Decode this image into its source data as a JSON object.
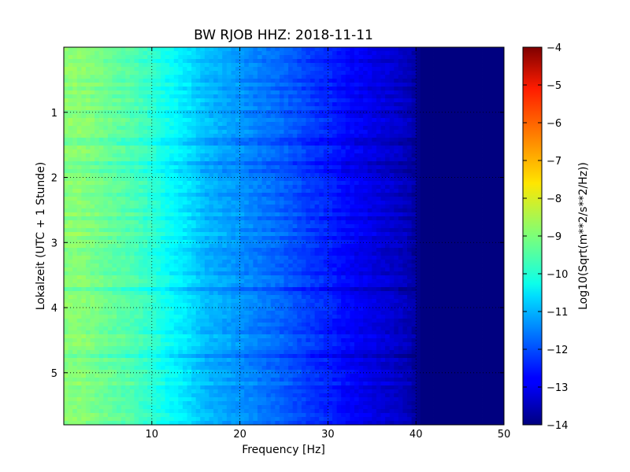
{
  "chart_data": {
    "type": "heatmap",
    "title": "BW RJOB HHZ: 2018-11-11",
    "xlabel": "Frequency [Hz]",
    "ylabel": "Lokalzeit (UTC + 1 Stunde)",
    "xlim": [
      0,
      50
    ],
    "ylim": [
      0,
      5.8
    ],
    "y_inverted": true,
    "x_ticks": [
      10,
      20,
      30,
      40,
      50
    ],
    "y_ticks": [
      1,
      2,
      3,
      4,
      5
    ],
    "grid": true,
    "colormap": "jet",
    "colorbar": {
      "label": "Log10(Sqrt(m**2/s**2/Hz))",
      "range": [
        -14,
        -4
      ],
      "ticks": [
        -4,
        -5,
        -6,
        -7,
        -8,
        -9,
        -10,
        -11,
        -12,
        -13,
        -14
      ]
    },
    "frequency_profile": {
      "x": [
        0,
        2,
        5,
        8,
        10,
        12,
        14,
        16,
        18,
        20,
        22,
        25,
        28,
        30,
        32,
        34,
        36,
        38,
        39.5,
        40.5,
        45,
        50
      ],
      "values": [
        -8.9,
        -8.9,
        -9.2,
        -9.5,
        -9.8,
        -10.2,
        -10.5,
        -10.9,
        -11.1,
        -11.3,
        -11.5,
        -11.8,
        -12.2,
        -12.4,
        -12.7,
        -12.9,
        -13.1,
        -13.3,
        -13.5,
        -14.0,
        -14.0,
        -14.0
      ]
    }
  }
}
